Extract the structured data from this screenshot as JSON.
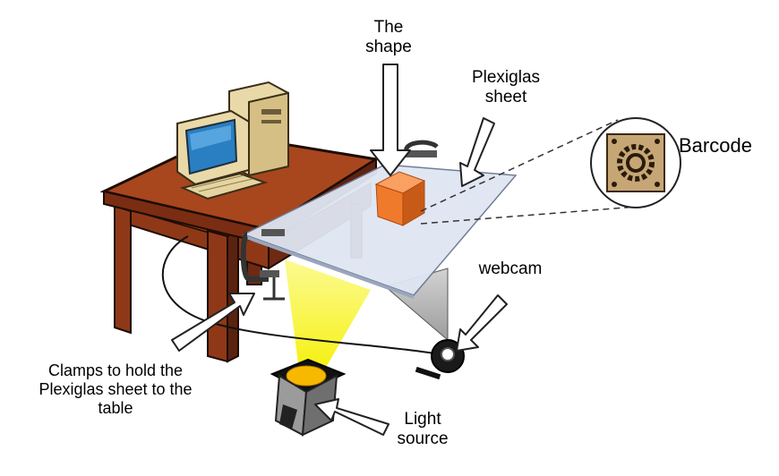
{
  "labels": {
    "shape": [
      "The",
      "shape"
    ],
    "plexiglas": [
      "Plexiglas",
      "sheet"
    ],
    "barcode": "Barcode",
    "webcam": "webcam",
    "clamps": [
      "Clamps to hold the",
      "Plexiglas sheet to the",
      "table"
    ],
    "light_source": [
      "Light",
      "source"
    ]
  },
  "colors": {
    "table_top": "#a8461e",
    "table_edge": "#5e2310",
    "plexiglas": "#dfe6f3",
    "shape_cube": "#f07a2c",
    "light_beam": "#f7f200",
    "barcode_bg": "#c7a676"
  },
  "icons": [
    "computer-icon",
    "clamp-icon",
    "webcam-icon",
    "lamp-icon",
    "barcode-icon",
    "callout-arrow-icon"
  ]
}
